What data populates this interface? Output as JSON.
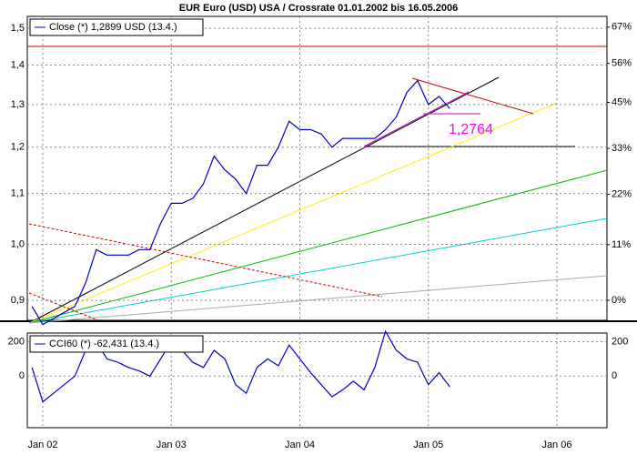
{
  "chart_data": [
    {
      "type": "line",
      "title": "EUR Euro (USD) USA / Crossrate 01.01.2002 bis 16.05.2006",
      "log": true,
      "ylim": [
        0.867,
        1.534
      ],
      "yticks": [
        {
          "value": 0.9,
          "label": "0,9"
        },
        {
          "value": 1.0,
          "label": "1,0"
        },
        {
          "value": 1.1,
          "label": "1,1"
        },
        {
          "value": 1.2,
          "label": "1,2"
        },
        {
          "value": 1.3,
          "label": "1,3"
        },
        {
          "value": 1.4,
          "label": "1,4"
        },
        {
          "value": 1.5,
          "label": "1,5"
        }
      ],
      "y2lim": [
        -3.7,
        70.4
      ],
      "y2ticks": [
        {
          "value": 0,
          "label": "0%"
        },
        {
          "value": 11,
          "label": "11%"
        },
        {
          "value": 22,
          "label": "22%"
        },
        {
          "value": 33,
          "label": "33%"
        },
        {
          "value": 45,
          "label": "45%"
        },
        {
          "value": 56,
          "label": "56%"
        },
        {
          "value": 67,
          "label": "67%"
        }
      ],
      "grid": true,
      "annotations": [
        "1,2764"
      ],
      "series": [
        {
          "name": "Close (*) 1,2899 USD (13.4.)",
          "color": "#0000cc",
          "values": [
            0.89,
            0.86,
            0.87,
            0.88,
            0.89,
            0.93,
            0.99,
            0.98,
            0.98,
            0.98,
            0.99,
            0.99,
            1.04,
            1.08,
            1.08,
            1.09,
            1.12,
            1.18,
            1.15,
            1.13,
            1.1,
            1.16,
            1.16,
            1.2,
            1.26,
            1.24,
            1.24,
            1.23,
            1.2,
            1.22,
            1.22,
            1.22,
            1.22,
            1.24,
            1.27,
            1.33,
            1.36,
            1.3,
            1.32,
            1.29,
            null,
            null,
            null,
            null,
            null,
            null,
            null,
            null,
            null,
            null,
            null,
            null,
            null,
            null
          ]
        }
      ]
    },
    {
      "type": "line",
      "categories": [
        null,
        "Jan 02",
        null,
        null,
        null,
        null,
        null,
        null,
        null,
        null,
        null,
        null,
        null,
        "Jan 03",
        null,
        null,
        null,
        null,
        null,
        null,
        null,
        null,
        null,
        null,
        null,
        "Jan 04",
        null,
        null,
        null,
        null,
        null,
        null,
        null,
        null,
        null,
        null,
        null,
        "Jan 05",
        null,
        null,
        null,
        null,
        null,
        null,
        null,
        null,
        null,
        null,
        null,
        "Jan 06",
        null,
        null,
        null,
        null
      ],
      "ylim": [
        -300,
        250
      ],
      "yticks": [
        0,
        200
      ],
      "grid": true,
      "series": [
        {
          "name": "CCI60 (*) -62,431 (13.4.)",
          "color": "#0000cc",
          "values": [
            50,
            -150,
            -100,
            -50,
            0,
            150,
            200,
            100,
            80,
            50,
            30,
            0,
            100,
            200,
            150,
            80,
            50,
            150,
            100,
            -50,
            -100,
            50,
            100,
            60,
            180,
            100,
            20,
            -50,
            -120,
            -80,
            -30,
            -80,
            50,
            260,
            150,
            100,
            80,
            -50,
            20,
            -62,
            null,
            null,
            null,
            null,
            null,
            null,
            null,
            null,
            null,
            null,
            null,
            null,
            null,
            null
          ]
        }
      ]
    }
  ]
}
